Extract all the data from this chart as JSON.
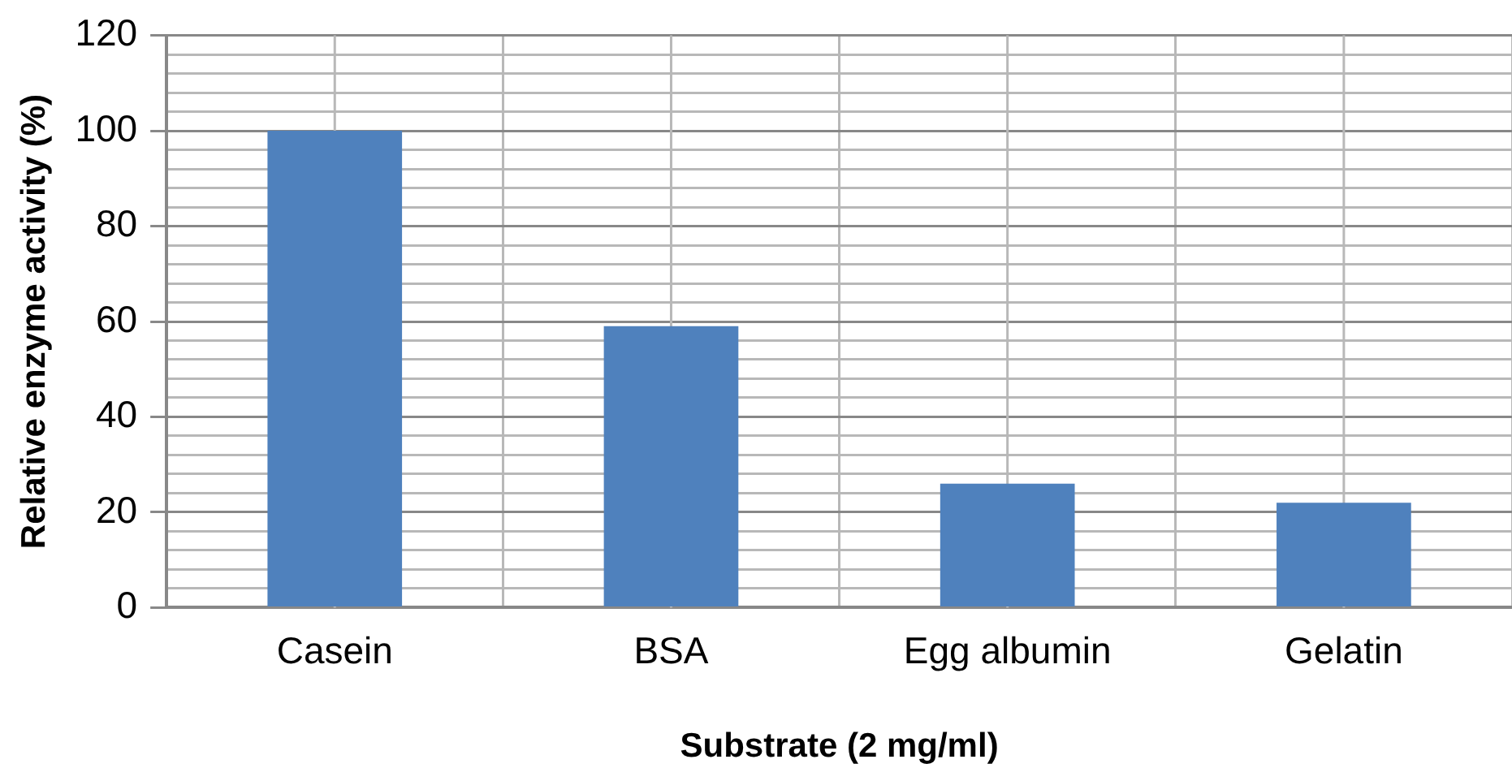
{
  "chart_data": {
    "type": "bar",
    "xlabel": "Substrate (2 mg/ml)",
    "ylabel": "Relative enzyme activity (%)",
    "categories": [
      "Casein",
      "BSA",
      "Egg albumin",
      "Gelatin"
    ],
    "values": [
      100,
      59,
      26,
      22
    ],
    "color": "#4f81bd",
    "ylim": [
      0,
      120
    ],
    "yticks": [
      0,
      {
        "value": 4,
        "label": null
      },
      {
        "value": 8,
        "label": null
      },
      {
        "value": 12,
        "label": null
      },
      {
        "value": 16,
        "label": null
      },
      20,
      {
        "value": 24,
        "label": null
      },
      {
        "value": 28,
        "label": null
      },
      {
        "value": 32,
        "label": null
      },
      {
        "value": 36,
        "label": null
      },
      40,
      {
        "value": 44,
        "label": null
      },
      {
        "value": 48,
        "label": null
      },
      {
        "value": 52,
        "label": null
      },
      {
        "value": 56,
        "label": null
      },
      60,
      {
        "value": 64,
        "label": null
      },
      {
        "value": 68,
        "label": null
      },
      {
        "value": 72,
        "label": null
      },
      {
        "value": 76,
        "label": null
      },
      80,
      {
        "value": 84,
        "label": null
      },
      {
        "value": 88,
        "label": null
      },
      {
        "value": 92,
        "label": null
      },
      {
        "value": 96,
        "label": null
      },
      100,
      {
        "value": 104,
        "label": null
      },
      {
        "value": 108,
        "label": null
      },
      {
        "value": 112,
        "label": null
      },
      {
        "value": 116,
        "label": null
      },
      120
    ],
    "grid": true,
    "legend": false
  }
}
